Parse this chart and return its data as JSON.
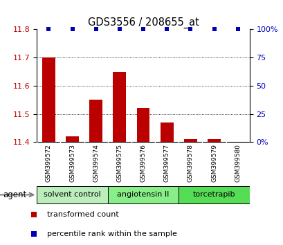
{
  "title": "GDS3556 / 208655_at",
  "samples": [
    "GSM399572",
    "GSM399573",
    "GSM399574",
    "GSM399575",
    "GSM399576",
    "GSM399577",
    "GSM399578",
    "GSM399579",
    "GSM399580"
  ],
  "transformed_counts": [
    11.7,
    11.42,
    11.55,
    11.65,
    11.52,
    11.47,
    11.41,
    11.41,
    11.4
  ],
  "percentile_ranks": [
    100,
    100,
    100,
    100,
    100,
    100,
    100,
    100,
    100
  ],
  "ylim": [
    11.4,
    11.8
  ],
  "yticks": [
    11.4,
    11.5,
    11.6,
    11.7,
    11.8
  ],
  "y2ticks": [
    0,
    25,
    50,
    75,
    100
  ],
  "bar_color": "#bb0000",
  "dot_color": "#0000bb",
  "bar_width": 0.55,
  "groups": [
    {
      "label": "solvent control",
      "indices": [
        0,
        1,
        2
      ],
      "color": "#bbeebb"
    },
    {
      "label": "angiotensin II",
      "indices": [
        3,
        4,
        5
      ],
      "color": "#88ee88"
    },
    {
      "label": "torcetrapib",
      "indices": [
        6,
        7,
        8
      ],
      "color": "#55dd55"
    }
  ],
  "agent_label": "agent",
  "legend_items": [
    {
      "color": "#bb0000",
      "label": "transformed count"
    },
    {
      "color": "#0000bb",
      "label": "percentile rank within the sample"
    }
  ],
  "sample_bg_color": "#d0d0d0",
  "plot_bg": "#ffffff"
}
